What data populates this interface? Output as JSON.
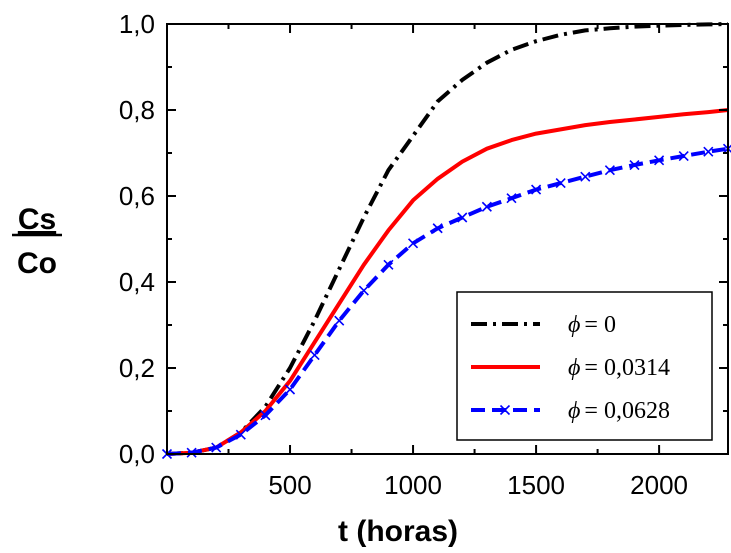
{
  "chart_data": {
    "type": "line",
    "title": "",
    "xlabel": "t (horas)",
    "ylabel_numerator": "Cs",
    "ylabel_denominator": "Co",
    "xlim": [
      0,
      2280
    ],
    "ylim": [
      0,
      1.0
    ],
    "x_ticks": [
      0,
      500,
      1000,
      1500,
      2000
    ],
    "x_tick_labels": [
      "0",
      "500",
      "1000",
      "1500",
      "2000"
    ],
    "y_ticks": [
      0,
      0.2,
      0.4,
      0.6,
      0.8,
      1.0
    ],
    "y_tick_labels": [
      "0,0",
      "0,2",
      "0,4",
      "0,6",
      "0,8",
      "1,0"
    ],
    "grid": false,
    "legend_position": "bottom-right",
    "series": [
      {
        "name": "ϕ = 0",
        "legend_symbol": "ϕ",
        "legend_value": "= 0",
        "color": "#000000",
        "style": "dash-dot",
        "marker": "none",
        "x": [
          0,
          100,
          200,
          300,
          400,
          500,
          600,
          700,
          800,
          900,
          1000,
          1100,
          1200,
          1300,
          1400,
          1500,
          1600,
          1700,
          1800,
          1900,
          2000,
          2100,
          2200,
          2280
        ],
        "y": [
          0.0,
          0.003,
          0.015,
          0.05,
          0.11,
          0.2,
          0.31,
          0.43,
          0.55,
          0.66,
          0.74,
          0.82,
          0.87,
          0.91,
          0.94,
          0.96,
          0.975,
          0.985,
          0.99,
          0.994,
          0.996,
          0.998,
          0.999,
          1.0
        ]
      },
      {
        "name": "ϕ = 0,0314",
        "legend_symbol": "ϕ",
        "legend_value": "= 0,0314",
        "color": "#ff0000",
        "style": "solid",
        "marker": "none",
        "x": [
          0,
          100,
          200,
          300,
          400,
          500,
          600,
          700,
          800,
          900,
          1000,
          1100,
          1200,
          1300,
          1400,
          1500,
          1600,
          1700,
          1800,
          1900,
          2000,
          2100,
          2200,
          2280
        ],
        "y": [
          0.0,
          0.003,
          0.015,
          0.05,
          0.1,
          0.17,
          0.26,
          0.35,
          0.44,
          0.52,
          0.59,
          0.64,
          0.68,
          0.71,
          0.73,
          0.745,
          0.755,
          0.765,
          0.772,
          0.778,
          0.784,
          0.79,
          0.795,
          0.8
        ]
      },
      {
        "name": "ϕ = 0,0628",
        "legend_symbol": "ϕ",
        "legend_value": "= 0,0628",
        "color": "#0000ff",
        "style": "dashed",
        "marker": "x",
        "x": [
          0,
          100,
          200,
          300,
          400,
          500,
          600,
          700,
          800,
          900,
          1000,
          1100,
          1200,
          1300,
          1400,
          1500,
          1600,
          1700,
          1800,
          1900,
          2000,
          2100,
          2200,
          2280
        ],
        "y": [
          0.0,
          0.003,
          0.015,
          0.045,
          0.09,
          0.15,
          0.23,
          0.31,
          0.38,
          0.44,
          0.49,
          0.525,
          0.55,
          0.575,
          0.595,
          0.615,
          0.63,
          0.645,
          0.66,
          0.672,
          0.683,
          0.693,
          0.703,
          0.71
        ]
      }
    ]
  }
}
